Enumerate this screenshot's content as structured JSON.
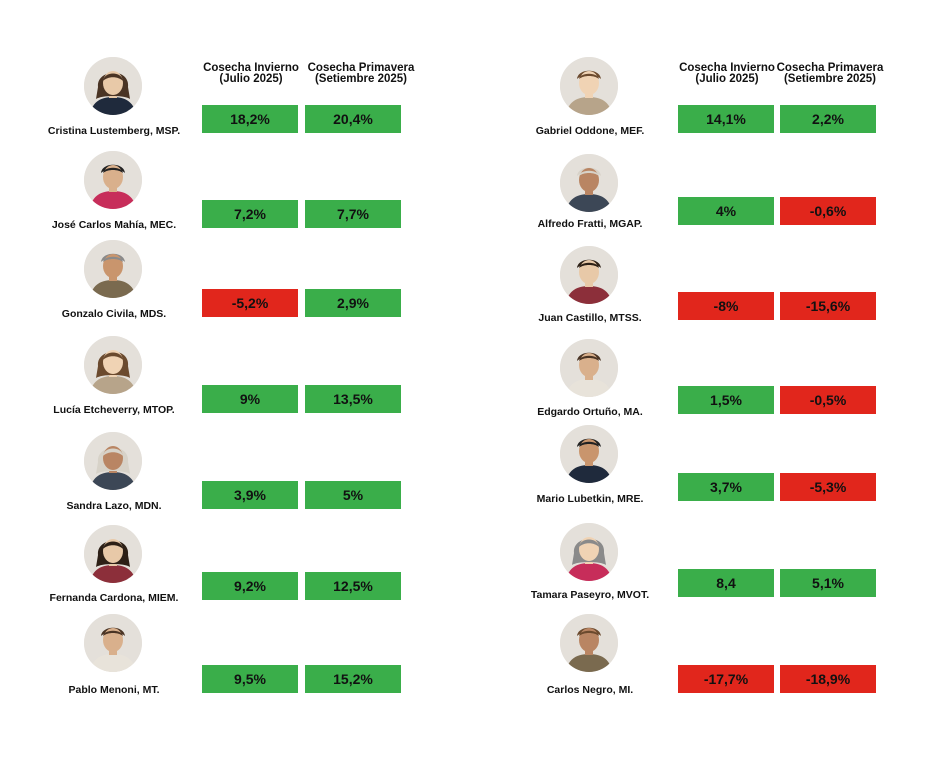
{
  "chart_data": {
    "type": "table",
    "columns": [
      "Cosecha Invierno (Julio 2025)",
      "Cosecha Primavera (Setiembre 2025)"
    ],
    "colors": {
      "positive": "#3aae4a",
      "negative": "#e1261c"
    },
    "panels": [
      {
        "header": {
          "col1": [
            "Cosecha Invierno",
            "(Julio 2025)"
          ],
          "col2": [
            "Cosecha Primavera",
            "(Setiembre 2025)"
          ]
        },
        "rows": [
          {
            "name": "Cristina Lustemberg, MSP.",
            "avatar_icon": "woman-portrait-icon",
            "invierno": "18,2%",
            "primavera": "20,4%",
            "invierno_value": 18.2,
            "primavera_value": 20.4
          },
          {
            "name": "José Carlos Mahía, MEC.",
            "avatar_icon": "man-portrait-icon",
            "invierno": "7,2%",
            "primavera": "7,7%",
            "invierno_value": 7.2,
            "primavera_value": 7.7
          },
          {
            "name": "Gonzalo Civila, MDS.",
            "avatar_icon": "man-portrait-icon",
            "invierno": "-5,2%",
            "primavera": "2,9%",
            "invierno_value": -5.2,
            "primavera_value": 2.9
          },
          {
            "name": "Lucía Etcheverry, MTOP.",
            "avatar_icon": "woman-portrait-icon",
            "invierno": "9%",
            "primavera": "13,5%",
            "invierno_value": 9,
            "primavera_value": 13.5
          },
          {
            "name": "Sandra Lazo, MDN.",
            "avatar_icon": "woman-portrait-icon",
            "invierno": "3,9%",
            "primavera": "5%",
            "invierno_value": 3.9,
            "primavera_value": 5
          },
          {
            "name": "Fernanda Cardona, MIEM.",
            "avatar_icon": "woman-portrait-icon",
            "invierno": "9,2%",
            "primavera": "12,5%",
            "invierno_value": 9.2,
            "primavera_value": 12.5
          },
          {
            "name": "Pablo Menoni, MT.",
            "avatar_icon": "man-portrait-icon",
            "invierno": "9,5%",
            "primavera": "15,2%",
            "invierno_value": 9.5,
            "primavera_value": 15.2
          }
        ]
      },
      {
        "header": {
          "col1": [
            "Cosecha Invierno",
            "(Julio 2025)"
          ],
          "col2": [
            "Cosecha Primavera",
            "(Setiembre 2025)"
          ]
        },
        "rows": [
          {
            "name": "Gabriel Oddone, MEF.",
            "avatar_icon": "man-portrait-icon",
            "invierno": "14,1%",
            "primavera": "2,2%",
            "invierno_value": 14.1,
            "primavera_value": 2.2
          },
          {
            "name": "Alfredo Fratti, MGAP.",
            "avatar_icon": "man-portrait-icon",
            "invierno": "4%",
            "primavera": "-0,6%",
            "invierno_value": 4,
            "primavera_value": -0.6
          },
          {
            "name": "Juan Castillo, MTSS.",
            "avatar_icon": "man-portrait-icon",
            "invierno": "-8%",
            "primavera": "-15,6%",
            "invierno_value": -8,
            "primavera_value": -15.6
          },
          {
            "name": "Edgardo Ortuño, MA.",
            "avatar_icon": "man-portrait-icon",
            "invierno": "1,5%",
            "primavera": "-0,5%",
            "invierno_value": 1.5,
            "primavera_value": -0.5
          },
          {
            "name": "Mario Lubetkin, MRE.",
            "avatar_icon": "man-portrait-icon",
            "invierno": "3,7%",
            "primavera": "-5,3%",
            "invierno_value": 3.7,
            "primavera_value": -5.3
          },
          {
            "name": "Tamara Paseyro, MVOT.",
            "avatar_icon": "woman-portrait-icon",
            "invierno": "8,4",
            "primavera": "5,1%",
            "invierno_value": 8.4,
            "primavera_value": 5.1
          },
          {
            "name": "Carlos Negro, MI.",
            "avatar_icon": "man-portrait-icon",
            "invierno": "-17,7%",
            "primavera": "-18,9%",
            "invierno_value": -17.7,
            "primavera_value": -18.9
          }
        ]
      }
    ]
  }
}
